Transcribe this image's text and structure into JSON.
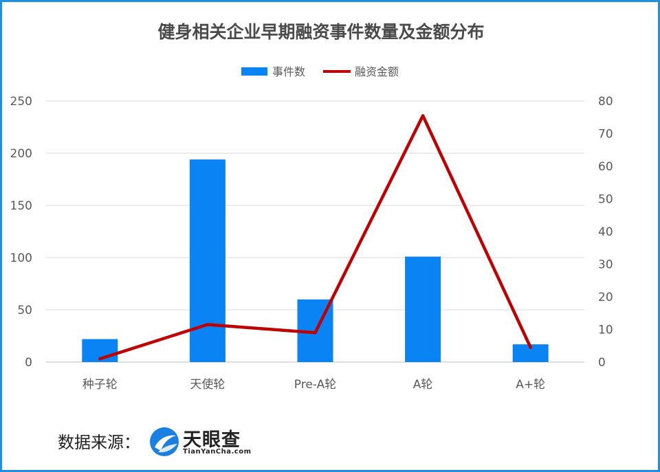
{
  "chart_data": {
    "type": "bar",
    "title": "健身相关企业早期融资事件数量及金额分布",
    "categories": [
      "种子轮",
      "天使轮",
      "Pre-A轮",
      "A轮",
      "A+轮"
    ],
    "series": [
      {
        "name": "事件数",
        "type": "bar",
        "axis": "left",
        "color": "#0a84f5",
        "values": [
          22,
          194,
          60,
          101,
          17
        ]
      },
      {
        "name": "融资金额",
        "type": "line",
        "axis": "right",
        "color": "#c00000",
        "values": [
          1,
          11.5,
          9,
          75.5,
          4.5
        ]
      }
    ],
    "y_left": {
      "min": 0,
      "max": 250,
      "ticks": [
        0,
        50,
        100,
        150,
        200,
        250
      ]
    },
    "y_right": {
      "min": 0,
      "max": 80,
      "ticks": [
        0,
        10,
        20,
        30,
        40,
        50,
        60,
        70,
        80
      ]
    },
    "grid": true,
    "legend_position": "top"
  },
  "source": {
    "label": "数据来源：",
    "logo_cn": "天眼查",
    "logo_en": "TianYanCha.com",
    "logo_color": "#1a7fe0"
  }
}
